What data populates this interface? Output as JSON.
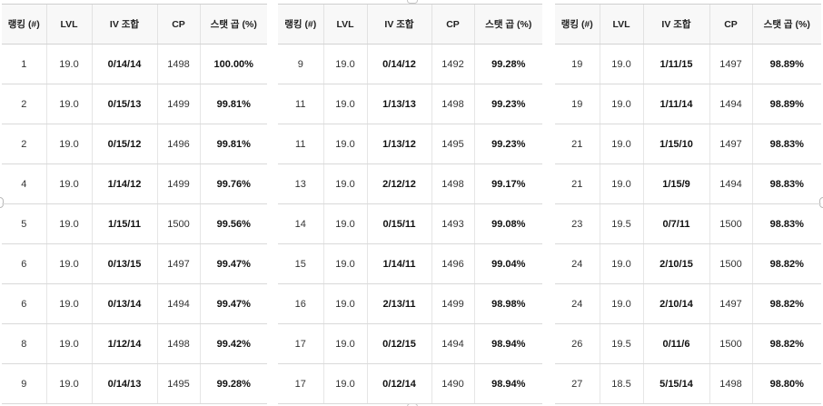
{
  "headers": [
    "랭킹 (#)",
    "LVL",
    "IV 조합",
    "CP",
    "스탯 곱 (%)"
  ],
  "tables": [
    {
      "rows": [
        {
          "rank": "1",
          "lvl": "19.0",
          "iv": "0/14/14",
          "cp": "1498",
          "pct": "100.00%"
        },
        {
          "rank": "2",
          "lvl": "19.0",
          "iv": "0/15/13",
          "cp": "1499",
          "pct": "99.81%"
        },
        {
          "rank": "2",
          "lvl": "19.0",
          "iv": "0/15/12",
          "cp": "1496",
          "pct": "99.81%"
        },
        {
          "rank": "4",
          "lvl": "19.0",
          "iv": "1/14/12",
          "cp": "1499",
          "pct": "99.76%"
        },
        {
          "rank": "5",
          "lvl": "19.0",
          "iv": "1/15/11",
          "cp": "1500",
          "pct": "99.56%"
        },
        {
          "rank": "6",
          "lvl": "19.0",
          "iv": "0/13/15",
          "cp": "1497",
          "pct": "99.47%"
        },
        {
          "rank": "6",
          "lvl": "19.0",
          "iv": "0/13/14",
          "cp": "1494",
          "pct": "99.47%"
        },
        {
          "rank": "8",
          "lvl": "19.0",
          "iv": "1/12/14",
          "cp": "1498",
          "pct": "99.42%"
        },
        {
          "rank": "9",
          "lvl": "19.0",
          "iv": "0/14/13",
          "cp": "1495",
          "pct": "99.28%"
        }
      ]
    },
    {
      "rows": [
        {
          "rank": "9",
          "lvl": "19.0",
          "iv": "0/14/12",
          "cp": "1492",
          "pct": "99.28%"
        },
        {
          "rank": "11",
          "lvl": "19.0",
          "iv": "1/13/13",
          "cp": "1498",
          "pct": "99.23%"
        },
        {
          "rank": "11",
          "lvl": "19.0",
          "iv": "1/13/12",
          "cp": "1495",
          "pct": "99.23%"
        },
        {
          "rank": "13",
          "lvl": "19.0",
          "iv": "2/12/12",
          "cp": "1498",
          "pct": "99.17%"
        },
        {
          "rank": "14",
          "lvl": "19.0",
          "iv": "0/15/11",
          "cp": "1493",
          "pct": "99.08%"
        },
        {
          "rank": "15",
          "lvl": "19.0",
          "iv": "1/14/11",
          "cp": "1496",
          "pct": "99.04%"
        },
        {
          "rank": "16",
          "lvl": "19.0",
          "iv": "2/13/11",
          "cp": "1499",
          "pct": "98.98%"
        },
        {
          "rank": "17",
          "lvl": "19.0",
          "iv": "0/12/15",
          "cp": "1494",
          "pct": "98.94%"
        },
        {
          "rank": "17",
          "lvl": "19.0",
          "iv": "0/12/14",
          "cp": "1490",
          "pct": "98.94%"
        }
      ]
    },
    {
      "rows": [
        {
          "rank": "19",
          "lvl": "19.0",
          "iv": "1/11/15",
          "cp": "1497",
          "pct": "98.89%"
        },
        {
          "rank": "19",
          "lvl": "19.0",
          "iv": "1/11/14",
          "cp": "1494",
          "pct": "98.89%"
        },
        {
          "rank": "21",
          "lvl": "19.0",
          "iv": "1/15/10",
          "cp": "1497",
          "pct": "98.83%"
        },
        {
          "rank": "21",
          "lvl": "19.0",
          "iv": "1/15/9",
          "cp": "1494",
          "pct": "98.83%"
        },
        {
          "rank": "23",
          "lvl": "19.5",
          "iv": "0/7/11",
          "cp": "1500",
          "pct": "98.83%"
        },
        {
          "rank": "24",
          "lvl": "19.0",
          "iv": "2/10/15",
          "cp": "1500",
          "pct": "98.82%"
        },
        {
          "rank": "24",
          "lvl": "19.0",
          "iv": "2/10/14",
          "cp": "1497",
          "pct": "98.82%"
        },
        {
          "rank": "26",
          "lvl": "19.5",
          "iv": "0/11/6",
          "cp": "1500",
          "pct": "98.82%"
        },
        {
          "rank": "27",
          "lvl": "18.5",
          "iv": "5/15/14",
          "cp": "1498",
          "pct": "98.80%"
        }
      ]
    }
  ]
}
